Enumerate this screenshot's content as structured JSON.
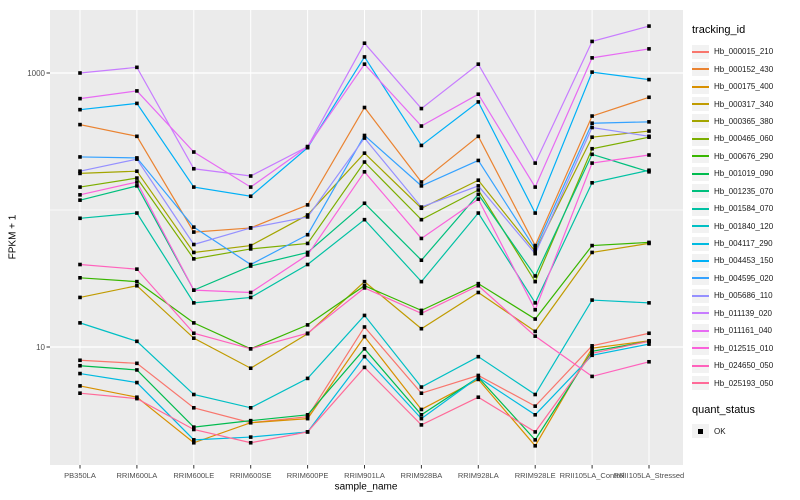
{
  "chart_data": {
    "type": "line",
    "title": "",
    "xlabel": "sample_name",
    "ylabel": "FPKM + 1",
    "y_scale": "log10",
    "y_ticks": [
      1000,
      10
    ],
    "y_minor_gridlines": [
      100
    ],
    "ylim": [
      1.4,
      2900
    ],
    "grid": "on",
    "point_marker": "black-square",
    "categories": [
      "PB350LA",
      "RRIM600LA",
      "RRIM600LE",
      "RRIM600SE",
      "RRIM600PE",
      "RRIM901LA",
      "RRIM928BA",
      "RRIM928LA",
      "RRIM928LE",
      "RRII105LA_Control",
      "RRII105LA_Stressed"
    ],
    "legend": {
      "title": "tracking_id",
      "position": "right"
    },
    "quant_legend": {
      "title": "quant_status",
      "items": [
        {
          "label": "OK",
          "marker": "black-square"
        }
      ]
    },
    "series": [
      {
        "name": "Hb_000015_210",
        "color": "#F8766D",
        "values": [
          8.0,
          7.6,
          3.6,
          2.8,
          3.1,
          14.0,
          4.6,
          6.2,
          3.7,
          10.2,
          12.6
        ]
      },
      {
        "name": "Hb_000152_430",
        "color": "#EA8331",
        "values": [
          420,
          345,
          69,
          74,
          109,
          560,
          160,
          345,
          55,
          485,
          665
        ]
      },
      {
        "name": "Hb_000175_400",
        "color": "#D89000",
        "values": [
          5.2,
          4.3,
          2.0,
          2.8,
          3.0,
          11.9,
          3.5,
          5.8,
          1.9,
          9.8,
          11.1
        ]
      },
      {
        "name": "Hb_000317_340",
        "color": "#C09B00",
        "values": [
          23,
          28,
          11.6,
          7.0,
          12.5,
          30,
          13.6,
          25,
          13,
          49,
          57
        ]
      },
      {
        "name": "Hb_000365_380",
        "color": "#A3A500",
        "values": [
          185,
          192,
          49,
          55,
          92,
          260,
          103,
          165,
          50,
          340,
          377
        ]
      },
      {
        "name": "Hb_000465_060",
        "color": "#7CAE00",
        "values": [
          147,
          171,
          44,
          52,
          57,
          224,
          85,
          140,
          30,
          280,
          340
        ]
      },
      {
        "name": "Hb_000676_290",
        "color": "#39B600",
        "values": [
          32,
          30,
          15,
          9.7,
          14.5,
          28,
          18.5,
          29,
          16,
          55,
          58
        ]
      },
      {
        "name": "Hb_001019_090",
        "color": "#00BB4E",
        "values": [
          7.3,
          6.8,
          2.6,
          2.9,
          3.2,
          9.7,
          3.2,
          6.0,
          2.1,
          9.3,
          11.0
        ]
      },
      {
        "name": "Hb_001235_070",
        "color": "#00BF7D",
        "values": [
          118,
          150,
          26,
          39,
          49,
          112,
          43,
          130,
          33,
          255,
          190
        ]
      },
      {
        "name": "Hb_001584_070",
        "color": "#00C1A3",
        "values": [
          87,
          95,
          21,
          23,
          40,
          85,
          30,
          95,
          21,
          158,
          195
        ]
      },
      {
        "name": "Hb_001840_120",
        "color": "#00BFC4",
        "values": [
          15,
          11,
          4.5,
          3.6,
          5.9,
          17,
          5.1,
          8.5,
          4.5,
          22,
          21
        ]
      },
      {
        "name": "Hb_004117_290",
        "color": "#00BAE0",
        "values": [
          6.4,
          5.5,
          2.1,
          2.2,
          2.4,
          8.5,
          3.0,
          6.0,
          3.2,
          8.7,
          10.5
        ]
      },
      {
        "name": "Hb_004453_150",
        "color": "#00B0F6",
        "values": [
          540,
          600,
          147,
          126,
          285,
          1310,
          296,
          615,
          95,
          1015,
          895
        ]
      },
      {
        "name": "Hb_004595_020",
        "color": "#35A2FF",
        "values": [
          244,
          240,
          75,
          40,
          66,
          350,
          150,
          230,
          52,
          430,
          440
        ]
      },
      {
        "name": "Hb_005686_110",
        "color": "#9590FF",
        "values": [
          192,
          235,
          56,
          74,
          89,
          335,
          105,
          150,
          48,
          400,
          345
        ]
      },
      {
        "name": "Hb_011139_020",
        "color": "#C77CFF",
        "values": [
          1000,
          1100,
          200,
          177,
          290,
          1650,
          550,
          1160,
          220,
          1700,
          2200
        ]
      },
      {
        "name": "Hb_011161_040",
        "color": "#E76BF3",
        "values": [
          650,
          740,
          265,
          147,
          290,
          1160,
          410,
          700,
          147,
          1290,
          1500
        ]
      },
      {
        "name": "Hb_012515_010",
        "color": "#FA62DB",
        "values": [
          129,
          160,
          26,
          25,
          47,
          190,
          62,
          120,
          18.7,
          220,
          252
        ]
      },
      {
        "name": "Hb_024650_050",
        "color": "#FF62BC",
        "values": [
          40,
          37,
          12.6,
          9.7,
          12.6,
          27,
          17.6,
          28,
          12,
          6.1,
          7.8
        ]
      },
      {
        "name": "Hb_025193_050",
        "color": "#FF6A98",
        "values": [
          4.6,
          4.2,
          2.5,
          2.0,
          2.4,
          7.1,
          2.7,
          4.3,
          2.4,
          9.0,
          11.0
        ]
      }
    ]
  },
  "colors": {
    "panel_bg": "#EBEBEB",
    "grid": "#FFFFFF",
    "axis_text": "#4D4D4D",
    "tick_mark": "#333333",
    "point": "#000000",
    "legend_key_bg": "#F2F2F2",
    "background": "#FFFFFF"
  }
}
